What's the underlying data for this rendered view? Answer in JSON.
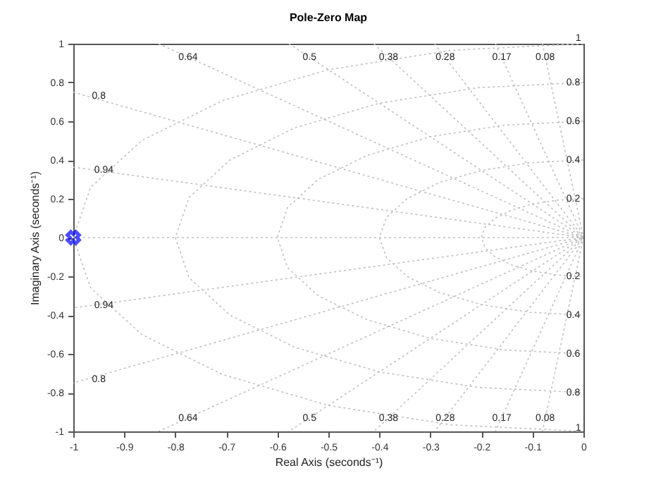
{
  "chart_data": {
    "type": "scatter",
    "title": "Pole-Zero Map",
    "xlabel": "Real Axis (seconds⁻¹)",
    "ylabel": "Imaginary Axis (seconds⁻¹)",
    "xlim": [
      -1,
      0
    ],
    "ylim": [
      -1,
      1
    ],
    "xticks": [
      -1,
      -0.9,
      -0.8,
      -0.7,
      -0.6,
      -0.5,
      -0.4,
      -0.3,
      -0.2,
      -0.1,
      0
    ],
    "yticks": [
      -1,
      -0.8,
      -0.6,
      -0.4,
      -0.2,
      0,
      0.2,
      0.4,
      0.6,
      0.8,
      1
    ],
    "grid": false,
    "legend": false,
    "series": [
      {
        "type": "line",
        "line_style": "dotted",
        "color": "#c0c0c0",
        "x": [
          -0.0803,
          0,
          -0.0803
        ],
        "values": [
          1,
          0,
          -1
        ]
      },
      {
        "type": "line",
        "line_style": "dotted",
        "color": "#c0c0c0",
        "x": [
          -0.1725,
          0,
          -0.1725
        ],
        "values": [
          1,
          0,
          -1
        ]
      },
      {
        "type": "line",
        "line_style": "dotted",
        "color": "#c0c0c0",
        "x": [
          -0.2917,
          0,
          -0.2917
        ],
        "values": [
          1,
          0,
          -1
        ]
      },
      {
        "type": "line",
        "line_style": "dotted",
        "color": "#c0c0c0",
        "x": [
          -0.4108,
          0,
          -0.4108
        ],
        "values": [
          1,
          0,
          -1
        ]
      },
      {
        "type": "line",
        "line_style": "dotted",
        "color": "#c0c0c0",
        "x": [
          -0.5774,
          0,
          -0.5774
        ],
        "values": [
          1,
          0,
          -1
        ]
      },
      {
        "type": "line",
        "line_style": "dotted",
        "color": "#c0c0c0",
        "x": [
          -0.8329,
          0,
          -0.8329
        ],
        "values": [
          1,
          0,
          -1
        ]
      },
      {
        "type": "line",
        "line_style": "dotted",
        "color": "#c0c0c0",
        "x": [
          -1,
          0,
          -1
        ],
        "values": [
          0.75,
          0,
          -0.75
        ]
      },
      {
        "type": "line",
        "line_style": "dotted",
        "color": "#c0c0c0",
        "x": [
          -1,
          0,
          -1
        ],
        "values": [
          0.363,
          0,
          -0.363
        ]
      },
      {
        "type": "line",
        "line_style": "dotted",
        "color": "#c0c0c0",
        "x": [
          -1,
          0
        ],
        "values": [
          0,
          0
        ]
      },
      {
        "type": "line",
        "line_style": "dotted",
        "color": "#c0c0c0",
        "x": [
          0,
          -0.259,
          -0.5,
          -0.707,
          -0.866,
          -0.966,
          -1,
          -0.966,
          -0.866,
          -0.707,
          -0.5,
          -0.259,
          0
        ],
        "values": [
          1,
          0.966,
          0.866,
          0.707,
          0.5,
          0.259,
          0,
          -0.259,
          -0.5,
          -0.707,
          -0.866,
          -0.966,
          -1
        ]
      },
      {
        "type": "line",
        "line_style": "dotted",
        "color": "#c0c0c0",
        "x": [
          0,
          -0.207,
          -0.4,
          -0.566,
          -0.693,
          -0.773,
          -0.8,
          -0.773,
          -0.693,
          -0.566,
          -0.4,
          -0.207,
          0
        ],
        "values": [
          0.8,
          0.773,
          0.693,
          0.566,
          0.4,
          0.207,
          0,
          -0.207,
          -0.4,
          -0.566,
          -0.693,
          -0.773,
          -0.8
        ]
      },
      {
        "type": "line",
        "line_style": "dotted",
        "color": "#c0c0c0",
        "x": [
          0,
          -0.155,
          -0.3,
          -0.424,
          -0.52,
          -0.58,
          -0.6,
          -0.58,
          -0.52,
          -0.424,
          -0.3,
          -0.155,
          0
        ],
        "values": [
          0.6,
          0.58,
          0.52,
          0.424,
          0.3,
          0.155,
          0,
          -0.155,
          -0.3,
          -0.424,
          -0.52,
          -0.58,
          -0.6
        ]
      },
      {
        "type": "line",
        "line_style": "dotted",
        "color": "#c0c0c0",
        "x": [
          0,
          -0.104,
          -0.2,
          -0.283,
          -0.346,
          -0.386,
          -0.4,
          -0.386,
          -0.346,
          -0.283,
          -0.2,
          -0.104,
          0
        ],
        "values": [
          0.4,
          0.386,
          0.346,
          0.283,
          0.2,
          0.104,
          0,
          -0.104,
          -0.2,
          -0.283,
          -0.346,
          -0.386,
          -0.4
        ]
      },
      {
        "type": "line",
        "line_style": "dotted",
        "color": "#c0c0c0",
        "x": [
          0,
          -0.052,
          -0.1,
          -0.141,
          -0.173,
          -0.193,
          -0.2,
          -0.193,
          -0.173,
          -0.141,
          -0.1,
          -0.052,
          0
        ],
        "values": [
          0.2,
          0.193,
          0.173,
          0.141,
          0.1,
          0.052,
          0,
          -0.052,
          -0.1,
          -0.141,
          -0.173,
          -0.193,
          -0.2
        ]
      },
      {
        "type": "scatter",
        "marker": "cross",
        "color": "#0000ff",
        "x": [
          -1
        ],
        "values": [
          0
        ]
      }
    ],
    "annotations": [
      {
        "text": "0.64",
        "x": -0.775,
        "y": 0.93
      },
      {
        "text": "0.5",
        "x": -0.537,
        "y": 0.93
      },
      {
        "text": "0.38",
        "x": -0.382,
        "y": 0.93
      },
      {
        "text": "0.28",
        "x": -0.271,
        "y": 0.93
      },
      {
        "text": "0.17",
        "x": -0.16,
        "y": 0.93
      },
      {
        "text": "0.08",
        "x": -0.075,
        "y": 0.93
      },
      {
        "text": "0.8",
        "x": -0.95,
        "y": 0.73
      },
      {
        "text": "0.94",
        "x": -0.94,
        "y": 0.35
      },
      {
        "text": "0.94",
        "x": -0.94,
        "y": -0.35
      },
      {
        "text": "0.8",
        "x": -0.95,
        "y": -0.73
      },
      {
        "text": "0.64",
        "x": -0.775,
        "y": -0.93
      },
      {
        "text": "0.5",
        "x": -0.537,
        "y": -0.93
      },
      {
        "text": "0.38",
        "x": -0.382,
        "y": -0.93
      },
      {
        "text": "0.28",
        "x": -0.271,
        "y": -0.93
      },
      {
        "text": "0.17",
        "x": -0.16,
        "y": -0.93
      },
      {
        "text": "0.08",
        "x": -0.075,
        "y": -0.93
      },
      {
        "text": "1",
        "x": -0.01,
        "y": 1.03
      },
      {
        "text": "0.8",
        "x": -0.02,
        "y": 0.8
      },
      {
        "text": "0.6",
        "x": -0.02,
        "y": 0.6
      },
      {
        "text": "0.4",
        "x": -0.02,
        "y": 0.4
      },
      {
        "text": "0.2",
        "x": -0.02,
        "y": 0.2
      },
      {
        "text": "0.2",
        "x": -0.02,
        "y": -0.2
      },
      {
        "text": "0.4",
        "x": -0.02,
        "y": -0.4
      },
      {
        "text": "0.6",
        "x": -0.02,
        "y": -0.6
      },
      {
        "text": "0.8",
        "x": -0.02,
        "y": -0.8
      },
      {
        "text": "1",
        "x": -0.01,
        "y": -0.98
      }
    ]
  }
}
